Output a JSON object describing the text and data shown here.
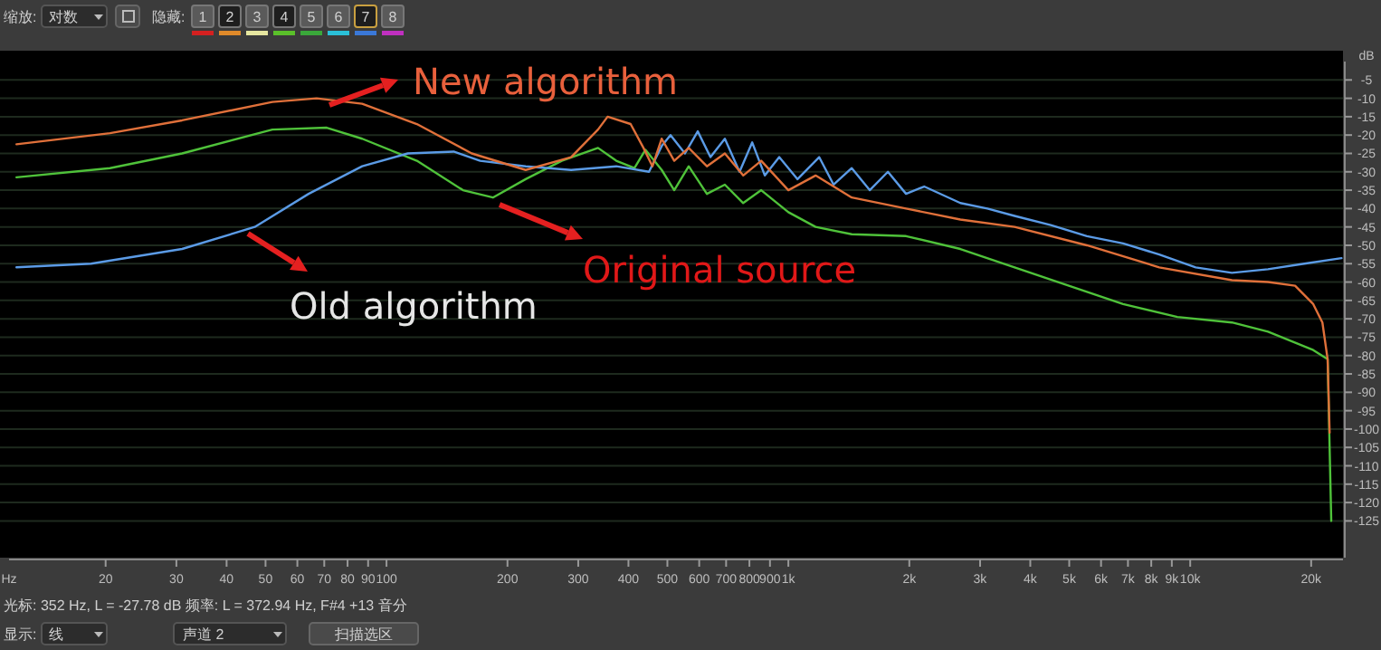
{
  "chart_data": {
    "type": "line",
    "ylabel": "dB",
    "xlabel": "Hz",
    "log": "x",
    "grid": "y",
    "marker": "none",
    "line_style": "solid",
    "xlim": [
      11.5,
      24000
    ],
    "ylim": [
      -135,
      0
    ],
    "xticks": [
      20,
      30,
      40,
      50,
      60,
      70,
      80,
      90,
      100,
      200,
      300,
      400,
      500,
      600,
      700,
      800,
      900,
      {
        "value": 1000,
        "label": "1k"
      },
      {
        "value": 2000,
        "label": "2k"
      },
      {
        "value": 3000,
        "label": "3k"
      },
      {
        "value": 4000,
        "label": "4k"
      },
      {
        "value": 5000,
        "label": "5k"
      },
      {
        "value": 6000,
        "label": "6k"
      },
      {
        "value": 7000,
        "label": "7k"
      },
      {
        "value": 8000,
        "label": "8k"
      },
      {
        "value": 9000,
        "label": "9k"
      },
      {
        "value": 10000,
        "label": "10k"
      },
      {
        "value": 20000,
        "label": "20k"
      }
    ],
    "yticks": [
      -5,
      -10,
      -15,
      -20,
      -25,
      -30,
      -35,
      -40,
      -45,
      -50,
      -55,
      -60,
      -65,
      -70,
      -75,
      -80,
      -85,
      -90,
      -95,
      -100,
      -105,
      -110,
      -115,
      -120,
      -125
    ],
    "series": [
      {
        "name": "New algorithm",
        "color": "#e0703a",
        "x": [
          12,
          20.5,
          31,
          52,
          67,
          87,
          119,
          163,
          222,
          288,
          336,
          355,
          405,
          436,
          459,
          484,
          520,
          565,
          627,
          695,
          772,
          856,
          1000,
          1169,
          1438,
          1963,
          2679,
          3656,
          5534,
          8375,
          12700,
          15620,
          18240,
          20240,
          21330,
          21980,
          22230
        ],
        "values": [
          -22.5,
          -19.5,
          -16,
          -11,
          -10,
          -11.5,
          -17,
          -25,
          -29.5,
          -26,
          -18.5,
          -15,
          -17,
          -23.5,
          -28.5,
          -21,
          -27,
          -23.5,
          -28.5,
          -25,
          -31,
          -27,
          -35,
          -31,
          -37,
          -40,
          -43,
          -45,
          -50,
          -56,
          -59.5,
          -60,
          -61,
          -66,
          -71,
          -81,
          -101
        ]
      },
      {
        "name": "Old algorithm",
        "color": "#5b9be6",
        "x": [
          12,
          18.4,
          31,
          47,
          64,
          87,
          113,
          147,
          171,
          222,
          288,
          373,
          450,
          484,
          509,
          553,
          595,
          640,
          695,
          756,
          813,
          874,
          949,
          1054,
          1193,
          1296,
          1438,
          1594,
          1769,
          1963,
          2178,
          2679,
          3128,
          3656,
          4498,
          5534,
          6808,
          8375,
          10320,
          12700,
          15620,
          19230,
          23800
        ],
        "values": [
          -56,
          -55,
          -51,
          -45,
          -36,
          -28.5,
          -25,
          -24.5,
          -27,
          -28.5,
          -29.5,
          -28.5,
          -30,
          -23,
          -20,
          -25,
          -19,
          -26,
          -21,
          -30,
          -22,
          -31,
          -26,
          -32,
          -26,
          -33.5,
          -29,
          -35,
          -30,
          -36,
          -34,
          -38.5,
          -40,
          -42,
          -44.5,
          -47.5,
          -49.5,
          -52.5,
          -56,
          -57.5,
          -56.5,
          -55,
          -53.5
        ]
      },
      {
        "name": "Original source",
        "color": "#4fc23a",
        "x": [
          12,
          20.5,
          31,
          52,
          71,
          87,
          119,
          155,
          184,
          222,
          273,
          336,
          373,
          414,
          441,
          484,
          520,
          565,
          627,
          695,
          772,
          856,
          1000,
          1169,
          1438,
          1963,
          2679,
          3656,
          4989,
          6808,
          9290,
          12700,
          15620,
          20240,
          21980,
          22440
        ],
        "values": [
          -31.5,
          -29,
          -25,
          -18.5,
          -18,
          -21,
          -27,
          -35,
          -37,
          -32,
          -27,
          -23.5,
          -27,
          -29,
          -24,
          -29.5,
          -35,
          -28.5,
          -36,
          -33.5,
          -38.5,
          -35,
          -41,
          -45,
          -47,
          -47.5,
          -51,
          -56,
          -61,
          -66,
          -69.5,
          -71,
          -73.5,
          -78.5,
          -81,
          -125
        ]
      }
    ],
    "annotations": [
      "缩放:",
      "对数",
      "隐藏:",
      "1",
      "2",
      "3",
      "4",
      "5",
      "6",
      "7",
      "8",
      "光标: 352 Hz, L = -27.78 dB   频率: L = 372.94 Hz, F#4 +13 音分",
      "显示:",
      "线",
      "声道 2",
      "扫描选区"
    ]
  }
}
